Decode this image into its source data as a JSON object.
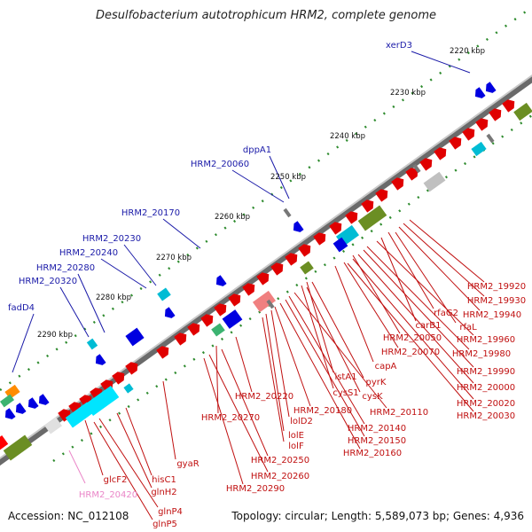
{
  "map": {
    "title": "Desulfobacterium autotrophicum HRM2, complete genome",
    "accession_label": "Accession: NC_012108",
    "topology_label": "Topology: circular; Length: 5,589,073 bp; Genes: 4,936"
  },
  "scale": {
    "ticks": [
      "2220 kbp",
      "2230 kbp",
      "2240 kbp",
      "2250 kbp",
      "2260 kbp",
      "2270 kbp",
      "2280 kbp",
      "2290 kbp"
    ]
  },
  "genes_top": [
    "xerD3",
    "dppA1",
    "HRM2_20060",
    "HRM2_20170",
    "HRM2_20230",
    "HRM2_20240",
    "HRM2_20280",
    "HRM2_20320",
    "fadD4"
  ],
  "genes_bottom": [
    "HRM2_19920",
    "HRM2_19930",
    "HRM2_19940",
    "rfaG2",
    "carB1",
    "rfaL",
    "HRM2_19960",
    "HRM2_19980",
    "HRM2_19990",
    "HRM2_20000",
    "HRM2_20020",
    "HRM2_20030",
    "HRM2_20050",
    "HRM2_20070",
    "capA",
    "istA1",
    "pyrK",
    "cysS1",
    "cysK",
    "HRM2_20110",
    "HRM2_20140",
    "HRM2_20150",
    "HRM2_20160",
    "HRM2_20180",
    "lolD2",
    "lolE",
    "lolF",
    "HRM2_20220",
    "HRM2_20270",
    "HRM2_20250",
    "HRM2_20260",
    "HRM2_20290",
    "gyaR",
    "hisC1",
    "glnH2",
    "glcF2",
    "glnP4",
    "glnP5"
  ],
  "genes_pseudo": [
    "HRM2_20420"
  ],
  "colors": {
    "backbone": "#8a8a8a",
    "forward_cds": "#e00000",
    "reverse_cds": "#0000e0",
    "rna": "#1565c0",
    "label_forward": "#c01010",
    "label_reverse": "#1a1aa8",
    "label_pseudo": "#ea86c8"
  }
}
